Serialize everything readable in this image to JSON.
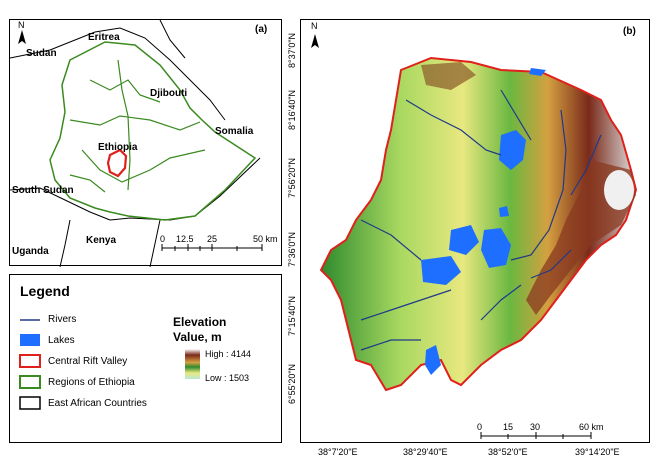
{
  "panel_a": {
    "label": "(a)",
    "north": "N",
    "countries": [
      "Eritrea",
      "Sudan",
      "Djibouti",
      "Somalia",
      "Ethiopia",
      "South Sudan",
      "Kenya",
      "Uganda"
    ],
    "scale": {
      "ticks": [
        "0",
        "12.5",
        "25",
        "50 km"
      ]
    }
  },
  "panel_b": {
    "label": "(b)",
    "north": "N",
    "lat_ticks": [
      "8°37'0\"N",
      "8°16'40\"N",
      "7°56'20\"N",
      "7°36'0\"N",
      "7°15'40\"N",
      "6°55'20\"N"
    ],
    "lon_ticks": [
      "38°7'20\"E",
      "38°29'40\"E",
      "38°52'0\"E",
      "39°14'20\"E"
    ],
    "scale": {
      "ticks": [
        "0",
        "15",
        "30",
        "60 km"
      ]
    }
  },
  "legend": {
    "title": "Legend",
    "items": [
      {
        "label": "Rivers",
        "color": "#1f3a8a"
      },
      {
        "label": "Lakes",
        "color": "#1e6fff"
      },
      {
        "label": "Central Rift Valley",
        "color": "#e0201a"
      },
      {
        "label": "Regions of Ethiopia",
        "color": "#3a8a1f"
      },
      {
        "label": "East African Countries",
        "color": "#000000"
      }
    ],
    "elevation": {
      "title": "Elevation",
      "subtitle": "Value, m",
      "high": "High : 4144",
      "low": "Low : 1503"
    }
  }
}
